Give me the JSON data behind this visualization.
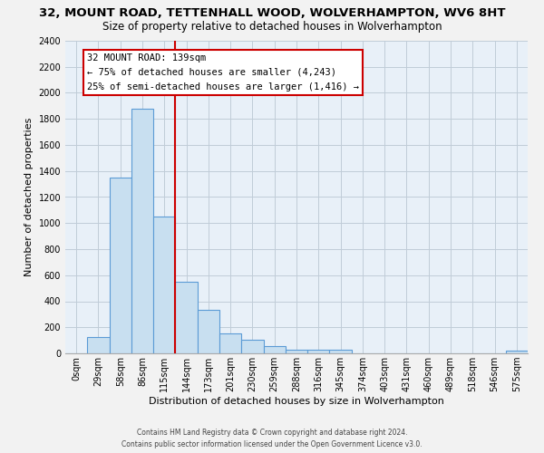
{
  "title": "32, MOUNT ROAD, TETTENHALL WOOD, WOLVERHAMPTON, WV6 8HT",
  "subtitle": "Size of property relative to detached houses in Wolverhampton",
  "xlabel": "Distribution of detached houses by size in Wolverhampton",
  "ylabel": "Number of detached properties",
  "bar_labels": [
    "0sqm",
    "29sqm",
    "58sqm",
    "86sqm",
    "115sqm",
    "144sqm",
    "173sqm",
    "201sqm",
    "230sqm",
    "259sqm",
    "288sqm",
    "316sqm",
    "345sqm",
    "374sqm",
    "403sqm",
    "431sqm",
    "460sqm",
    "489sqm",
    "518sqm",
    "546sqm",
    "575sqm"
  ],
  "bar_values": [
    0,
    125,
    1350,
    1880,
    1050,
    550,
    335,
    155,
    105,
    55,
    25,
    25,
    30,
    0,
    0,
    0,
    0,
    0,
    0,
    0,
    20
  ],
  "bar_color": "#c8dff0",
  "bar_edge_color": "#5b9bd5",
  "vline_color": "#cc0000",
  "annotation_title": "32 MOUNT ROAD: 139sqm",
  "annotation_line1": "← 75% of detached houses are smaller (4,243)",
  "annotation_line2": "25% of semi-detached houses are larger (1,416) →",
  "annotation_box_color": "#ffffff",
  "annotation_box_edge": "#cc0000",
  "ylim": [
    0,
    2400
  ],
  "yticks": [
    0,
    200,
    400,
    600,
    800,
    1000,
    1200,
    1400,
    1600,
    1800,
    2000,
    2200,
    2400
  ],
  "footer1": "Contains HM Land Registry data © Crown copyright and database right 2024.",
  "footer2": "Contains public sector information licensed under the Open Government Licence v3.0.",
  "bg_color": "#f2f2f2",
  "plot_bg_color": "#e8f0f8",
  "grid_color": "#c0ccd8",
  "title_fontsize": 9.5,
  "subtitle_fontsize": 8.5,
  "xlabel_fontsize": 8,
  "ylabel_fontsize": 8,
  "tick_fontsize": 7
}
